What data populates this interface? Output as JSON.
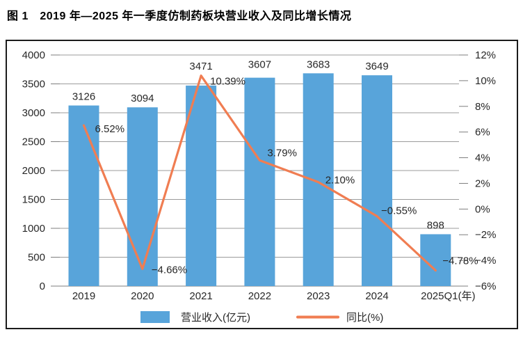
{
  "title": "图 1　2019 年—2025 年一季度仿制药板块营业收入及同比增长情况",
  "colors": {
    "bar": "#58a4da",
    "line": "#f07d52",
    "text": "#272727",
    "grid": "#9b9b9b",
    "axis_line": "#7d7d7d",
    "border": "#1b1b1b",
    "background": "#ffffff"
  },
  "chart_data": {
    "type": "bar+line",
    "title": "2019 年—2025 年一季度仿制药板块营业收入及同比增长情况",
    "categories": [
      "2019",
      "2020",
      "2021",
      "2022",
      "2023",
      "2024",
      "2025Q1(年)"
    ],
    "series": [
      {
        "name": "营业收入(亿元)",
        "type": "bar",
        "axis": "left",
        "color": "#58a4da",
        "values": [
          3126,
          3094,
          3471,
          3607,
          3683,
          3649,
          898
        ],
        "labels": [
          "3126",
          "3094",
          "3471",
          "3607",
          "3683",
          "3649",
          "898"
        ]
      },
      {
        "name": "同比(%)",
        "type": "line",
        "axis": "right",
        "color": "#f07d52",
        "values": [
          6.52,
          -4.66,
          10.39,
          3.79,
          2.1,
          -0.55,
          -4.78
        ],
        "labels": [
          "6.52%",
          "−4.66%",
          "10.39%",
          "3.79%",
          "2.10%",
          "−0.55%",
          "−4.78%"
        ]
      }
    ],
    "left_axis": {
      "min": 0,
      "max": 4000,
      "step": 500,
      "ticks": [
        "4000",
        "3500",
        "3000",
        "2500",
        "2000",
        "1500",
        "1000",
        "500",
        "0"
      ]
    },
    "right_axis": {
      "min": -6,
      "max": 12,
      "step": 2,
      "ticks": [
        "12%",
        "10%",
        "8%",
        "6%",
        "4%",
        "2%",
        "0%",
        "−2%",
        "−4%",
        "−6%"
      ]
    },
    "grid": true,
    "legend_position": "bottom",
    "legend": [
      {
        "label": "营业收入(亿元)",
        "swatch": "bar"
      },
      {
        "label": "同比(%)",
        "swatch": "line"
      }
    ]
  }
}
